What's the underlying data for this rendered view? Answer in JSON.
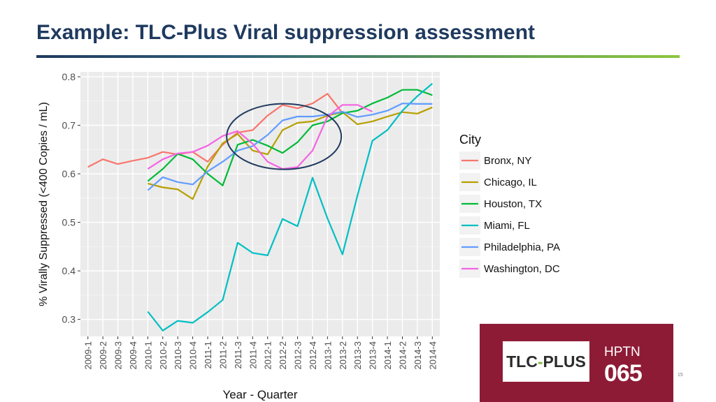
{
  "slide": {
    "title": "Example: TLC-Plus Viral suppression assessment",
    "page_number": "15"
  },
  "logo": {
    "part1": "TLC",
    "dash": "-",
    "part2": "PLUS",
    "hptn": "HPTN",
    "number": "065",
    "background": "#8e1b36"
  },
  "chart_data": {
    "type": "line",
    "xlabel": "Year - Quarter",
    "ylabel": "% Virally Suppressed (<400 Copies / mL)",
    "ylim": [
      0.265,
      0.81
    ],
    "yticks": [
      0.3,
      0.4,
      0.5,
      0.6,
      0.7,
      0.8
    ],
    "ytick_labels": [
      "0.3",
      "0.4",
      "0.5",
      "0.6",
      "0.7",
      "0.8"
    ],
    "grid": true,
    "legend_title": "City",
    "legend_position": "right",
    "categories": [
      "2009-1",
      "2009-2",
      "2009-3",
      "2009-4",
      "2010-1",
      "2010-2",
      "2010-3",
      "2010-4",
      "2011-1",
      "2011-2",
      "2011-3",
      "2011-4",
      "2012-1",
      "2012-2",
      "2012-3",
      "2012-4",
      "2013-1",
      "2013-2",
      "2013-3",
      "2013-4",
      "2014-1",
      "2014-2",
      "2014-3",
      "2014-4"
    ],
    "series": [
      {
        "name": "Bronx, NY",
        "color": "#f8766d",
        "values": [
          0.614,
          0.63,
          0.62,
          0.627,
          0.633,
          0.645,
          0.64,
          0.645,
          0.625,
          0.66,
          0.685,
          0.69,
          0.72,
          0.742,
          0.735,
          0.745,
          0.765,
          0.725,
          null,
          null,
          null,
          null,
          null,
          null
        ]
      },
      {
        "name": "Chicago, IL",
        "color": "#b79f00",
        "values": [
          null,
          null,
          null,
          null,
          0.58,
          0.572,
          0.568,
          0.548,
          0.615,
          0.663,
          0.682,
          0.648,
          0.64,
          0.69,
          0.705,
          0.708,
          0.72,
          0.727,
          0.702,
          0.708,
          0.718,
          0.727,
          0.724,
          0.737
        ]
      },
      {
        "name": "Houston, TX",
        "color": "#00ba38",
        "values": [
          null,
          null,
          null,
          null,
          0.585,
          0.61,
          0.641,
          0.63,
          0.6,
          0.576,
          0.66,
          0.67,
          0.658,
          0.643,
          0.665,
          0.7,
          0.708,
          0.725,
          0.73,
          0.745,
          0.757,
          0.773,
          0.773,
          0.762
        ]
      },
      {
        "name": "Miami, FL",
        "color": "#00bfc4",
        "values": [
          null,
          null,
          null,
          null,
          0.316,
          0.277,
          0.297,
          0.293,
          0.315,
          0.34,
          0.458,
          0.437,
          0.432,
          0.507,
          0.492,
          0.592,
          0.508,
          0.434,
          0.555,
          0.668,
          0.69,
          0.73,
          0.76,
          0.786
        ]
      },
      {
        "name": "Philadelphia, PA",
        "color": "#619cff",
        "values": [
          null,
          null,
          null,
          null,
          0.566,
          0.593,
          0.583,
          0.578,
          0.605,
          0.625,
          0.648,
          0.657,
          0.68,
          0.71,
          0.718,
          0.718,
          0.722,
          0.728,
          0.717,
          0.722,
          0.73,
          0.745,
          0.744,
          0.744
        ]
      },
      {
        "name": "Washington, DC",
        "color": "#f564e3",
        "values": [
          null,
          null,
          null,
          null,
          0.61,
          0.63,
          0.642,
          0.645,
          0.658,
          0.678,
          0.688,
          0.662,
          0.625,
          0.61,
          0.614,
          0.648,
          0.718,
          0.742,
          0.742,
          0.728,
          null,
          null,
          null,
          null
        ]
      }
    ],
    "annotation": {
      "type": "ellipse",
      "center_x": "2012-2",
      "center_y": 0.648,
      "color": "#1f3a5f"
    }
  }
}
